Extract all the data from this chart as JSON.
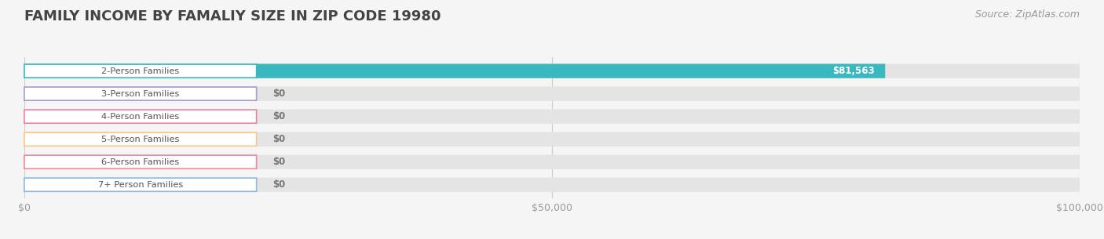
{
  "title": "FAMILY INCOME BY FAMALIY SIZE IN ZIP CODE 19980",
  "source": "Source: ZipAtlas.com",
  "categories": [
    "2-Person Families",
    "3-Person Families",
    "4-Person Families",
    "5-Person Families",
    "6-Person Families",
    "7+ Person Families"
  ],
  "values": [
    81563,
    0,
    0,
    0,
    0,
    0
  ],
  "bar_colors": [
    "#3ab8c0",
    "#a89cc8",
    "#f080a0",
    "#f8c888",
    "#f08898",
    "#90b8e0"
  ],
  "xlim": [
    0,
    100000
  ],
  "xticks": [
    0,
    50000,
    100000
  ],
  "xtick_labels": [
    "$0",
    "$50,000",
    "$100,000"
  ],
  "value_labels": [
    "$81,563",
    "$0",
    "$0",
    "$0",
    "$0",
    "$0"
  ],
  "background_color": "#f5f5f5",
  "bar_bg_color": "#e4e4e4",
  "title_fontsize": 13,
  "source_fontsize": 9,
  "bar_height": 0.62,
  "figsize": [
    14.06,
    3.05
  ],
  "dpi": 100
}
